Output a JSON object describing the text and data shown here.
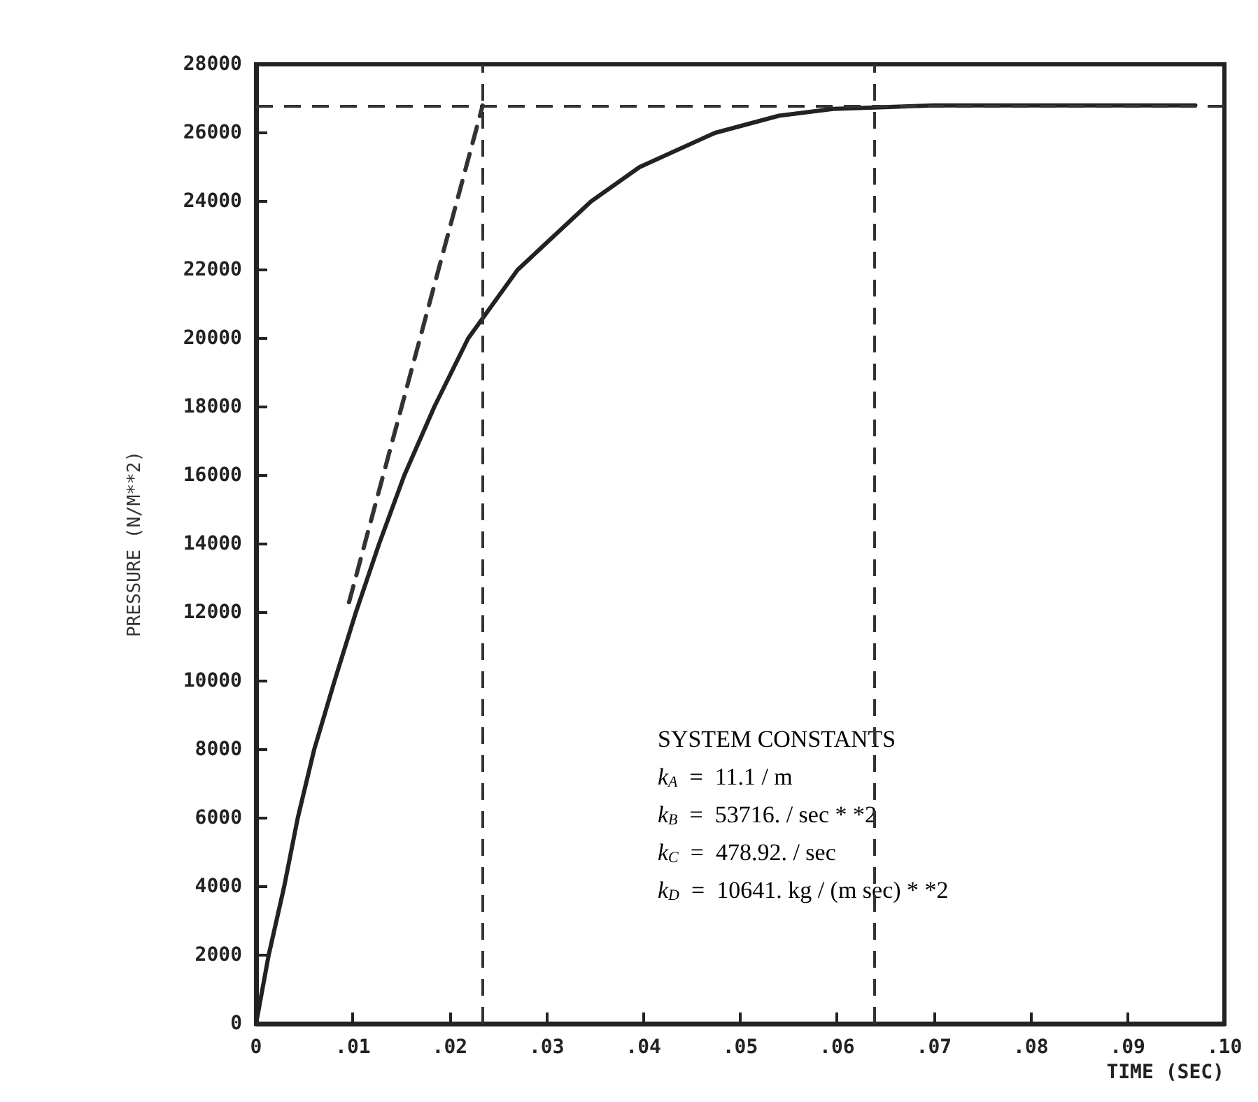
{
  "chart_data": {
    "type": "line",
    "xlabel": "TIME (SEC)",
    "ylabel": "PRESSURE (N/M**2)",
    "xlim": [
      0,
      0.1
    ],
    "xticks": [
      0,
      {
        "value": 0.01,
        "label": ".01"
      },
      {
        "value": 0.02,
        "label": ".02"
      },
      {
        "value": 0.03,
        "label": ".03"
      },
      {
        "value": 0.04,
        "label": ".04"
      },
      {
        "value": 0.05,
        "label": ".05"
      },
      {
        "value": 0.06,
        "label": ".06"
      },
      {
        "value": 0.07,
        "label": ".07"
      },
      {
        "value": 0.08,
        "label": ".08"
      },
      {
        "value": 0.09,
        "label": ".09"
      },
      {
        "value": 0.1,
        "label": ".10"
      }
    ],
    "ylim": [
      0,
      28000
    ],
    "yticks": [
      0,
      2000,
      4000,
      6000,
      8000,
      10000,
      12000,
      14000,
      16000,
      18000,
      20000,
      22000,
      24000,
      26000,
      28000
    ],
    "grid": false,
    "marker": "none",
    "series": [
      {
        "color": "#222222",
        "line_style": "solid",
        "x": [
          0,
          0.0013,
          0.0029,
          0.0043,
          0.006,
          0.0081,
          0.0103,
          0.0127,
          0.0153,
          0.0184,
          0.0219,
          0.027,
          0.0346,
          0.0396,
          0.0474,
          0.054,
          0.0596,
          0.07,
          0.08,
          0.09,
          0.097
        ],
        "values": [
          0,
          2000,
          4000,
          6000,
          8000,
          10000,
          12000,
          14000,
          16000,
          18000,
          20000,
          22000,
          24000,
          25000,
          26000,
          26500,
          26700,
          26800,
          26800,
          26800,
          26800
        ]
      },
      {
        "color": "#333333",
        "line_style": "dashed",
        "x": [
          0.0096,
          0.0234
        ],
        "values": [
          12300,
          26800
        ]
      }
    ],
    "ref_lines": [
      {
        "axis": "y",
        "value": 26800,
        "line_style": "dashed",
        "color": "#333333"
      },
      {
        "axis": "x",
        "value": 0.0234,
        "line_style": "dashed",
        "color": "#333333"
      },
      {
        "axis": "x",
        "value": 0.0639,
        "line_style": "dashed",
        "color": "#333333"
      }
    ],
    "annotations": [
      "SYSTEM CONSTANTS",
      "k$_{A}$  =  11.1 / m",
      "k$_{B}$  =  53716. / sec * *2",
      "k$_{C}$  =  478.92. / sec",
      "k$_{D}$  =  10641. kg / (m sec) * *2"
    ]
  }
}
